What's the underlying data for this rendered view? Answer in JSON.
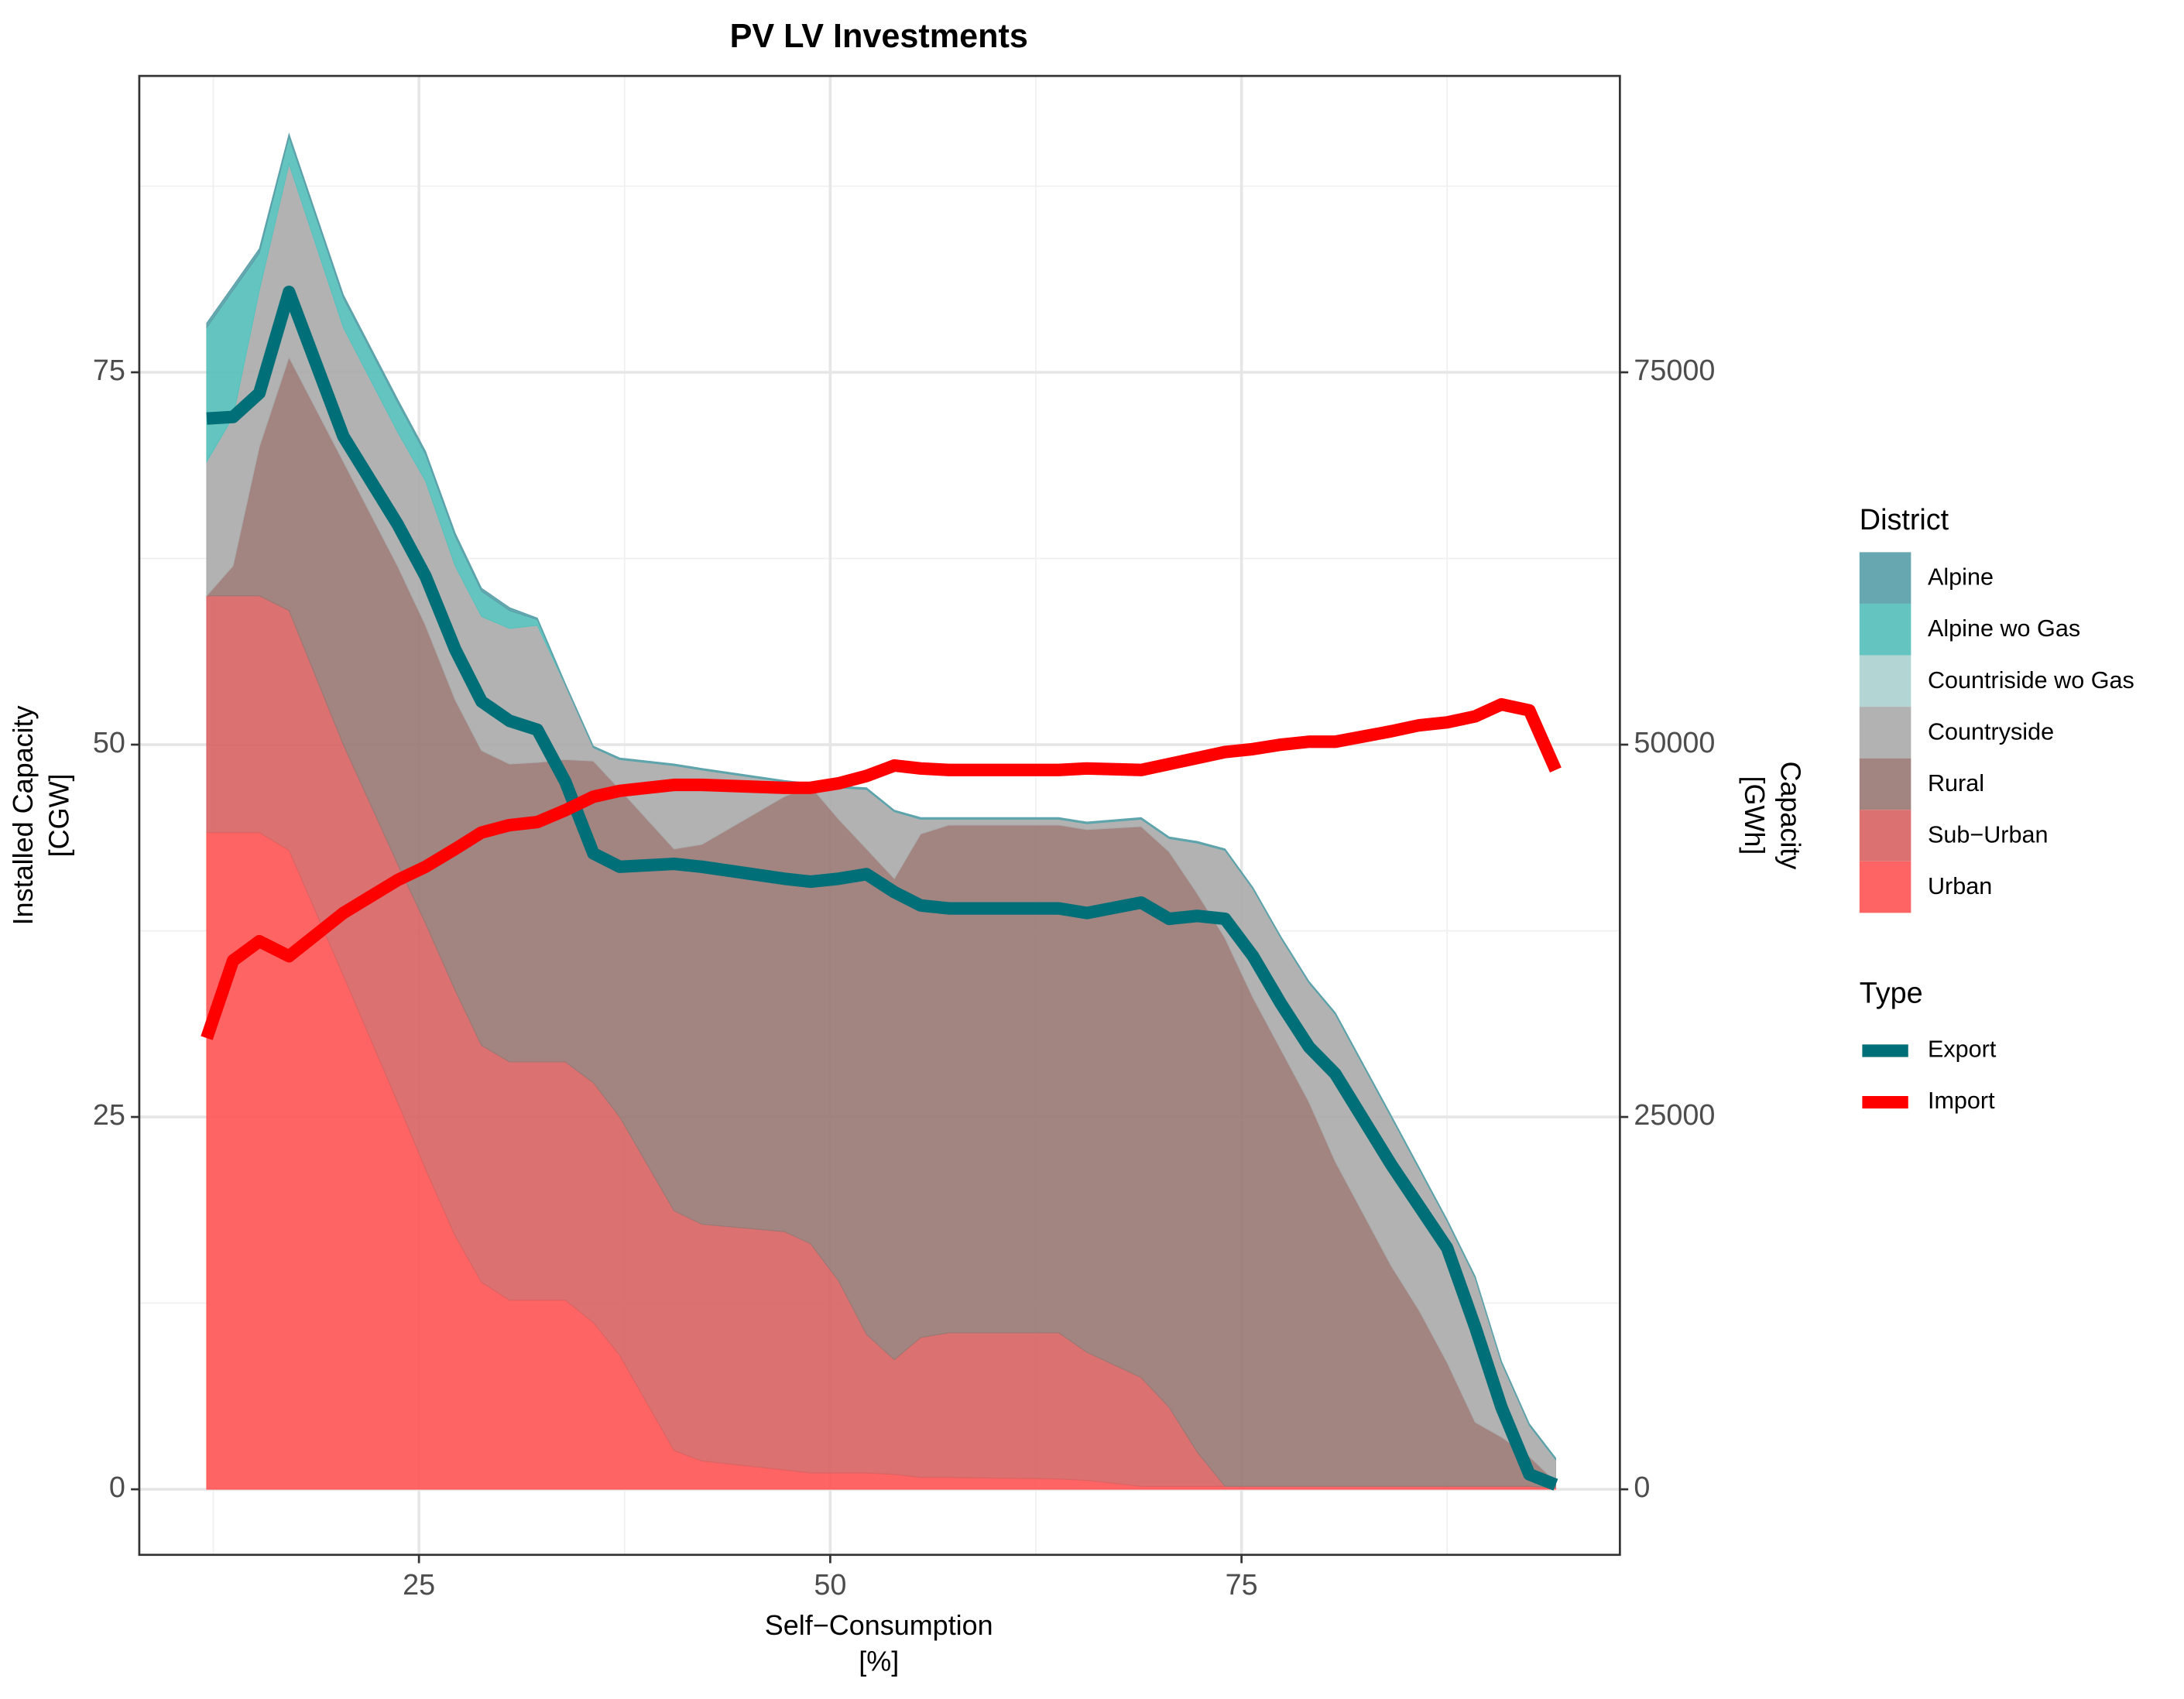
{
  "chart_data": {
    "type": "area",
    "title": "PV LV Investments",
    "xlabel": [
      "Self−Consumption",
      "[%]"
    ],
    "ylabel": [
      "Installed Capacity",
      "[CGW]"
    ],
    "y2label": [
      "Capacity",
      "[GWh]"
    ],
    "legend_title": "District",
    "line_legend_title": "Type",
    "legend_position": "right",
    "grid": true,
    "xlim": [
      8,
      98
    ],
    "xticks": [
      25,
      50,
      75
    ],
    "xticks_minor": [
      12.5,
      37.5,
      62.5,
      87.5
    ],
    "ylim": [
      -4.4,
      94.9
    ],
    "yticks": [
      0,
      25,
      50,
      75
    ],
    "yticks_minor": [
      12.5,
      37.5,
      62.5,
      87.5
    ],
    "y2lim": [
      -4400,
      94900
    ],
    "y2ticks": [
      0,
      25000,
      50000,
      75000
    ],
    "x": [
      12.1,
      13.7,
      15.3,
      17.1,
      20.4,
      23.7,
      25.4,
      27.2,
      28.8,
      30.5,
      32.2,
      33.9,
      35.6,
      37.2,
      40.5,
      42.2,
      47.2,
      48.8,
      50.5,
      52.2,
      53.9,
      55.5,
      57.2,
      63.9,
      65.6,
      68.9,
      70.6,
      72.3,
      74.0,
      75.7,
      77.4,
      79.1,
      80.7,
      84.1,
      85.8,
      87.5,
      89.2,
      90.8,
      92.5,
      94.1
    ],
    "series": [
      {
        "name": "Alpine",
        "color": "#5aa1a9",
        "values": [
          0.3,
          0.3,
          0.3,
          0.2,
          0.2,
          0.2,
          0.2,
          0.2,
          0.2,
          0.2,
          0.1,
          0.1,
          0.1,
          0.1,
          0.1,
          0.1,
          0.1,
          0.1,
          0.1,
          0.1,
          0.1,
          0.1,
          0.1,
          0.1,
          0.1,
          0.1,
          0.1,
          0.1,
          0.1,
          0.1,
          0.1,
          0.1,
          0.1,
          0.1,
          0.1,
          0.1,
          0.1,
          0.1,
          0.1,
          0.1
        ]
      },
      {
        "name": "Alpine wo Gas",
        "color": "#57c0bb",
        "values": [
          9,
          8.5,
          2.5,
          1.8,
          2,
          2,
          1.8,
          2,
          1.7,
          1.2,
          0.4,
          0,
          0,
          0,
          0,
          0,
          0,
          0,
          0,
          0,
          0,
          0,
          0,
          0,
          0,
          0,
          0,
          0,
          0,
          0,
          0,
          0,
          0,
          0,
          0,
          0,
          0,
          0,
          0,
          0
        ]
      },
      {
        "name": "Countriside wo Gas",
        "color": "#acd3d1",
        "values": [
          0,
          0,
          0,
          0,
          0,
          0,
          0,
          0,
          0,
          0,
          0,
          0,
          0,
          0,
          0,
          0,
          0,
          0,
          0,
          0,
          0,
          0,
          0,
          0,
          0,
          0,
          0,
          0,
          0,
          0,
          0,
          0,
          0,
          0,
          0,
          0,
          0,
          0,
          0,
          0
        ]
      },
      {
        "name": "Countryside",
        "color": "#ababab",
        "values": [
          9,
          10,
          10.5,
          13,
          9,
          9,
          9.7,
          9,
          9,
          9.1,
          9.2,
          5,
          0.9,
          2,
          5.6,
          5,
          1,
          0.1,
          2.1,
          4,
          4.5,
          1,
          0.4,
          0.4,
          0.4,
          0.5,
          0.9,
          3.4,
          5.9,
          7.3,
          7.5,
          8,
          9.9,
          10,
          9.5,
          9.5,
          9.7,
          5,
          2.1,
          1.5
        ]
      },
      {
        "name": "Rural",
        "color": "#9a7975",
        "values": [
          0,
          2,
          10,
          17,
          19,
          20,
          20,
          19.5,
          19.8,
          20,
          20.1,
          20.3,
          21.6,
          22,
          24.3,
          25.5,
          29.2,
          30.7,
          31,
          32.6,
          32.3,
          33.8,
          34.1,
          34.1,
          35.1,
          37,
          37.3,
          37.5,
          36.8,
          32.8,
          29.3,
          25.8,
          21.8,
          14.8,
          11.8,
          8.3,
          4.3,
          3.3,
          2.0,
          0.4
        ]
      },
      {
        "name": "Sub−Urban",
        "color": "#d96565",
        "values": [
          15.9,
          15.9,
          15.9,
          16.1,
          15.5,
          16,
          16.5,
          16.5,
          15.9,
          16,
          16,
          16,
          16.1,
          16,
          16.1,
          15.9,
          16,
          15.4,
          12.9,
          9.3,
          7.7,
          9.4,
          9.7,
          9.8,
          8.6,
          7.3,
          5.3,
          2.3,
          0,
          0,
          0,
          0,
          0,
          0,
          0,
          0,
          0,
          0,
          0,
          0
        ]
      },
      {
        "name": "Urban",
        "color": "#ff5757",
        "values": [
          44.1,
          44.1,
          44.1,
          42.9,
          34.5,
          26,
          21.5,
          17,
          13.9,
          12.7,
          12.7,
          12.7,
          11.2,
          9,
          2.6,
          1.9,
          1.3,
          1.1,
          1.1,
          1.1,
          1.0,
          0.8,
          0.8,
          0.7,
          0.6,
          0.2,
          0.2,
          0.2,
          0.2,
          0.2,
          0.2,
          0.2,
          0.2,
          0.2,
          0.2,
          0.2,
          0.2,
          0.2,
          0.2,
          0.1
        ]
      }
    ],
    "line_series": [
      {
        "name": "Export",
        "color": "#006f78",
        "axis": "y2",
        "values": [
          71900,
          72000,
          73600,
          80400,
          70700,
          64800,
          61300,
          56400,
          52900,
          51600,
          51000,
          47500,
          42700,
          41800,
          42000,
          41800,
          41000,
          40800,
          41000,
          41300,
          40100,
          39200,
          39000,
          39000,
          38700,
          39400,
          38300,
          38500,
          38300,
          35800,
          32600,
          29700,
          27900,
          21800,
          19000,
          16200,
          10900,
          5500,
          1000,
          300
        ]
      },
      {
        "name": "Import",
        "color": "#ff0000",
        "axis": "y2",
        "values": [
          30300,
          35500,
          36800,
          35800,
          38700,
          40900,
          41800,
          43000,
          44100,
          44600,
          44800,
          45600,
          46500,
          46900,
          47300,
          47300,
          47100,
          47100,
          47400,
          47900,
          48600,
          48400,
          48300,
          48300,
          48400,
          48300,
          48700,
          49100,
          49500,
          49700,
          50000,
          50200,
          50200,
          50900,
          51300,
          51500,
          51900,
          52700,
          52300,
          48300
        ]
      }
    ]
  }
}
